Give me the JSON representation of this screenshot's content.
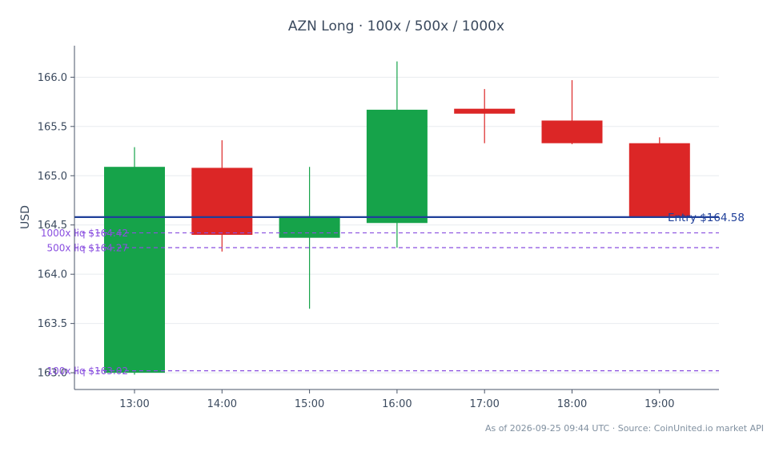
{
  "chart_data": {
    "type": "candlestick",
    "title": "AZN Long · 100x / 500x / 1000x",
    "ylabel": "USD",
    "xlabel": "",
    "ylim": [
      162.83,
      166.32
    ],
    "yticks": [
      163.0,
      163.5,
      164.0,
      164.5,
      165.0,
      165.5,
      166.0
    ],
    "ytick_labels": [
      "163.0",
      "163.5",
      "164.0",
      "164.5",
      "165.0",
      "165.5",
      "166.0"
    ],
    "grid": "horizontal",
    "candles": [
      {
        "time": "13:00",
        "open": 163.0,
        "high": 165.29,
        "low": 162.98,
        "close": 165.09
      },
      {
        "time": "14:00",
        "open": 165.08,
        "high": 165.36,
        "low": 164.23,
        "close": 164.4
      },
      {
        "time": "15:00",
        "open": 164.37,
        "high": 165.09,
        "low": 163.65,
        "close": 164.59
      },
      {
        "time": "16:00",
        "open": 164.52,
        "high": 166.16,
        "low": 164.27,
        "close": 165.67
      },
      {
        "time": "17:00",
        "open": 165.68,
        "high": 165.88,
        "low": 165.33,
        "close": 165.63
      },
      {
        "time": "18:00",
        "open": 165.56,
        "high": 165.97,
        "low": 165.32,
        "close": 165.33
      },
      {
        "time": "19:00",
        "open": 165.33,
        "high": 165.39,
        "low": 164.58,
        "close": 164.58
      }
    ],
    "lines": [
      {
        "label": "Entry $164.58",
        "value": 164.58,
        "color": "#1f3f99",
        "style": "solid"
      },
      {
        "label": "1000x liq $164.42",
        "value": 164.42,
        "color": "#8a4fe0",
        "style": "dashed"
      },
      {
        "label": "500x liq $164.27",
        "value": 164.27,
        "color": "#8a4fe0",
        "style": "dashed"
      },
      {
        "label": "100x liq $163.02",
        "value": 163.02,
        "color": "#8a4fe0",
        "style": "dashed"
      }
    ],
    "colors": {
      "up": "#16a34a",
      "down": "#dc2626",
      "axis": "#4a5568",
      "grid": "#e8ecef",
      "text": "#3b4a5e",
      "source": "#8090a0"
    },
    "source_note": "As of 2026-09-25 09:44 UTC · Source: CoinUnited.io market API"
  }
}
